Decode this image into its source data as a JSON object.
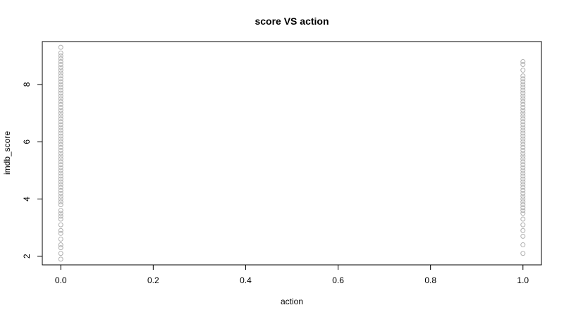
{
  "chart_data": {
    "type": "scatter",
    "title": "score VS action",
    "xlabel": "action",
    "ylabel": "imdb_score",
    "xlim": [
      -0.04,
      1.04
    ],
    "ylim": [
      1.7,
      9.5
    ],
    "x_ticks": [
      "0.0",
      "0.2",
      "0.4",
      "0.6",
      "0.8",
      "1.0"
    ],
    "y_ticks": [
      "2",
      "4",
      "6",
      "8"
    ],
    "grid": false,
    "legend": "none",
    "marker": "open-circle",
    "point_color": "#b0b0b0",
    "series": [
      {
        "x": 0,
        "values": [
          1.9,
          2.1,
          2.3,
          2.4,
          2.6,
          2.8,
          2.9,
          3.1,
          3.3,
          3.4,
          3.5,
          3.6,
          3.8,
          3.9,
          4.0,
          4.1,
          4.2,
          4.3,
          4.4,
          4.5,
          4.6,
          4.7,
          4.8,
          4.9,
          5.0,
          5.1,
          5.2,
          5.3,
          5.4,
          5.5,
          5.6,
          5.7,
          5.8,
          5.9,
          6.0,
          6.1,
          6.2,
          6.3,
          6.4,
          6.5,
          6.6,
          6.7,
          6.8,
          6.9,
          7.0,
          7.1,
          7.2,
          7.3,
          7.4,
          7.5,
          7.6,
          7.7,
          7.8,
          7.9,
          8.0,
          8.1,
          8.2,
          8.3,
          8.4,
          8.5,
          8.6,
          8.7,
          8.8,
          8.9,
          9.0,
          9.1,
          9.3
        ]
      },
      {
        "x": 1,
        "values": [
          2.1,
          2.4,
          2.7,
          2.9,
          3.1,
          3.3,
          3.5,
          3.6,
          3.7,
          3.8,
          3.9,
          4.0,
          4.1,
          4.2,
          4.3,
          4.4,
          4.5,
          4.6,
          4.7,
          4.8,
          4.9,
          5.0,
          5.1,
          5.2,
          5.3,
          5.4,
          5.5,
          5.6,
          5.7,
          5.8,
          5.9,
          6.0,
          6.1,
          6.2,
          6.3,
          6.4,
          6.5,
          6.6,
          6.7,
          6.8,
          6.9,
          7.0,
          7.1,
          7.2,
          7.3,
          7.4,
          7.5,
          7.6,
          7.7,
          7.8,
          7.9,
          8.0,
          8.1,
          8.2,
          8.3,
          8.5,
          8.7,
          8.8
        ]
      }
    ]
  }
}
